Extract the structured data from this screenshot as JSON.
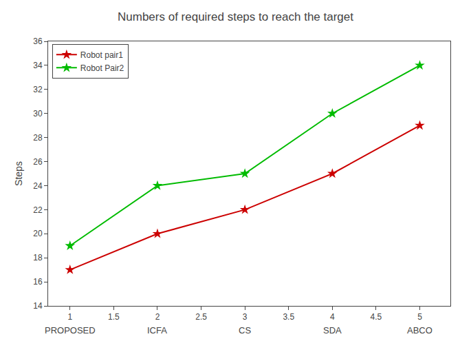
{
  "chart_data": {
    "type": "line",
    "title": "Numbers of required steps to reach the target",
    "ylabel": "Steps",
    "x": [
      1,
      2,
      3,
      4,
      5
    ],
    "series": [
      {
        "name": "Robot pair1",
        "color": "#cc0000",
        "values": [
          17,
          20,
          22,
          25,
          29
        ]
      },
      {
        "name": "Robot Pair2",
        "color": "#00bb00",
        "values": [
          19,
          24,
          25,
          30,
          34
        ]
      }
    ],
    "marker": "star",
    "xlim": [
      0.75,
      5.35
    ],
    "xticks": [
      1,
      1.5,
      2,
      2.5,
      3,
      3.5,
      4,
      4.5,
      5
    ],
    "ylim": [
      14,
      36
    ],
    "yticks": [
      14,
      16,
      18,
      20,
      22,
      24,
      26,
      28,
      30,
      32,
      34,
      36
    ],
    "annotations": [
      {
        "x": 1,
        "text": "PROPOSED"
      },
      {
        "x": 2,
        "text": "ICFA"
      },
      {
        "x": 3,
        "text": "CS"
      },
      {
        "x": 4,
        "text": "SDA"
      },
      {
        "x": 5,
        "text": "ABCO"
      }
    ],
    "grid": false,
    "legend": "upper left"
  }
}
